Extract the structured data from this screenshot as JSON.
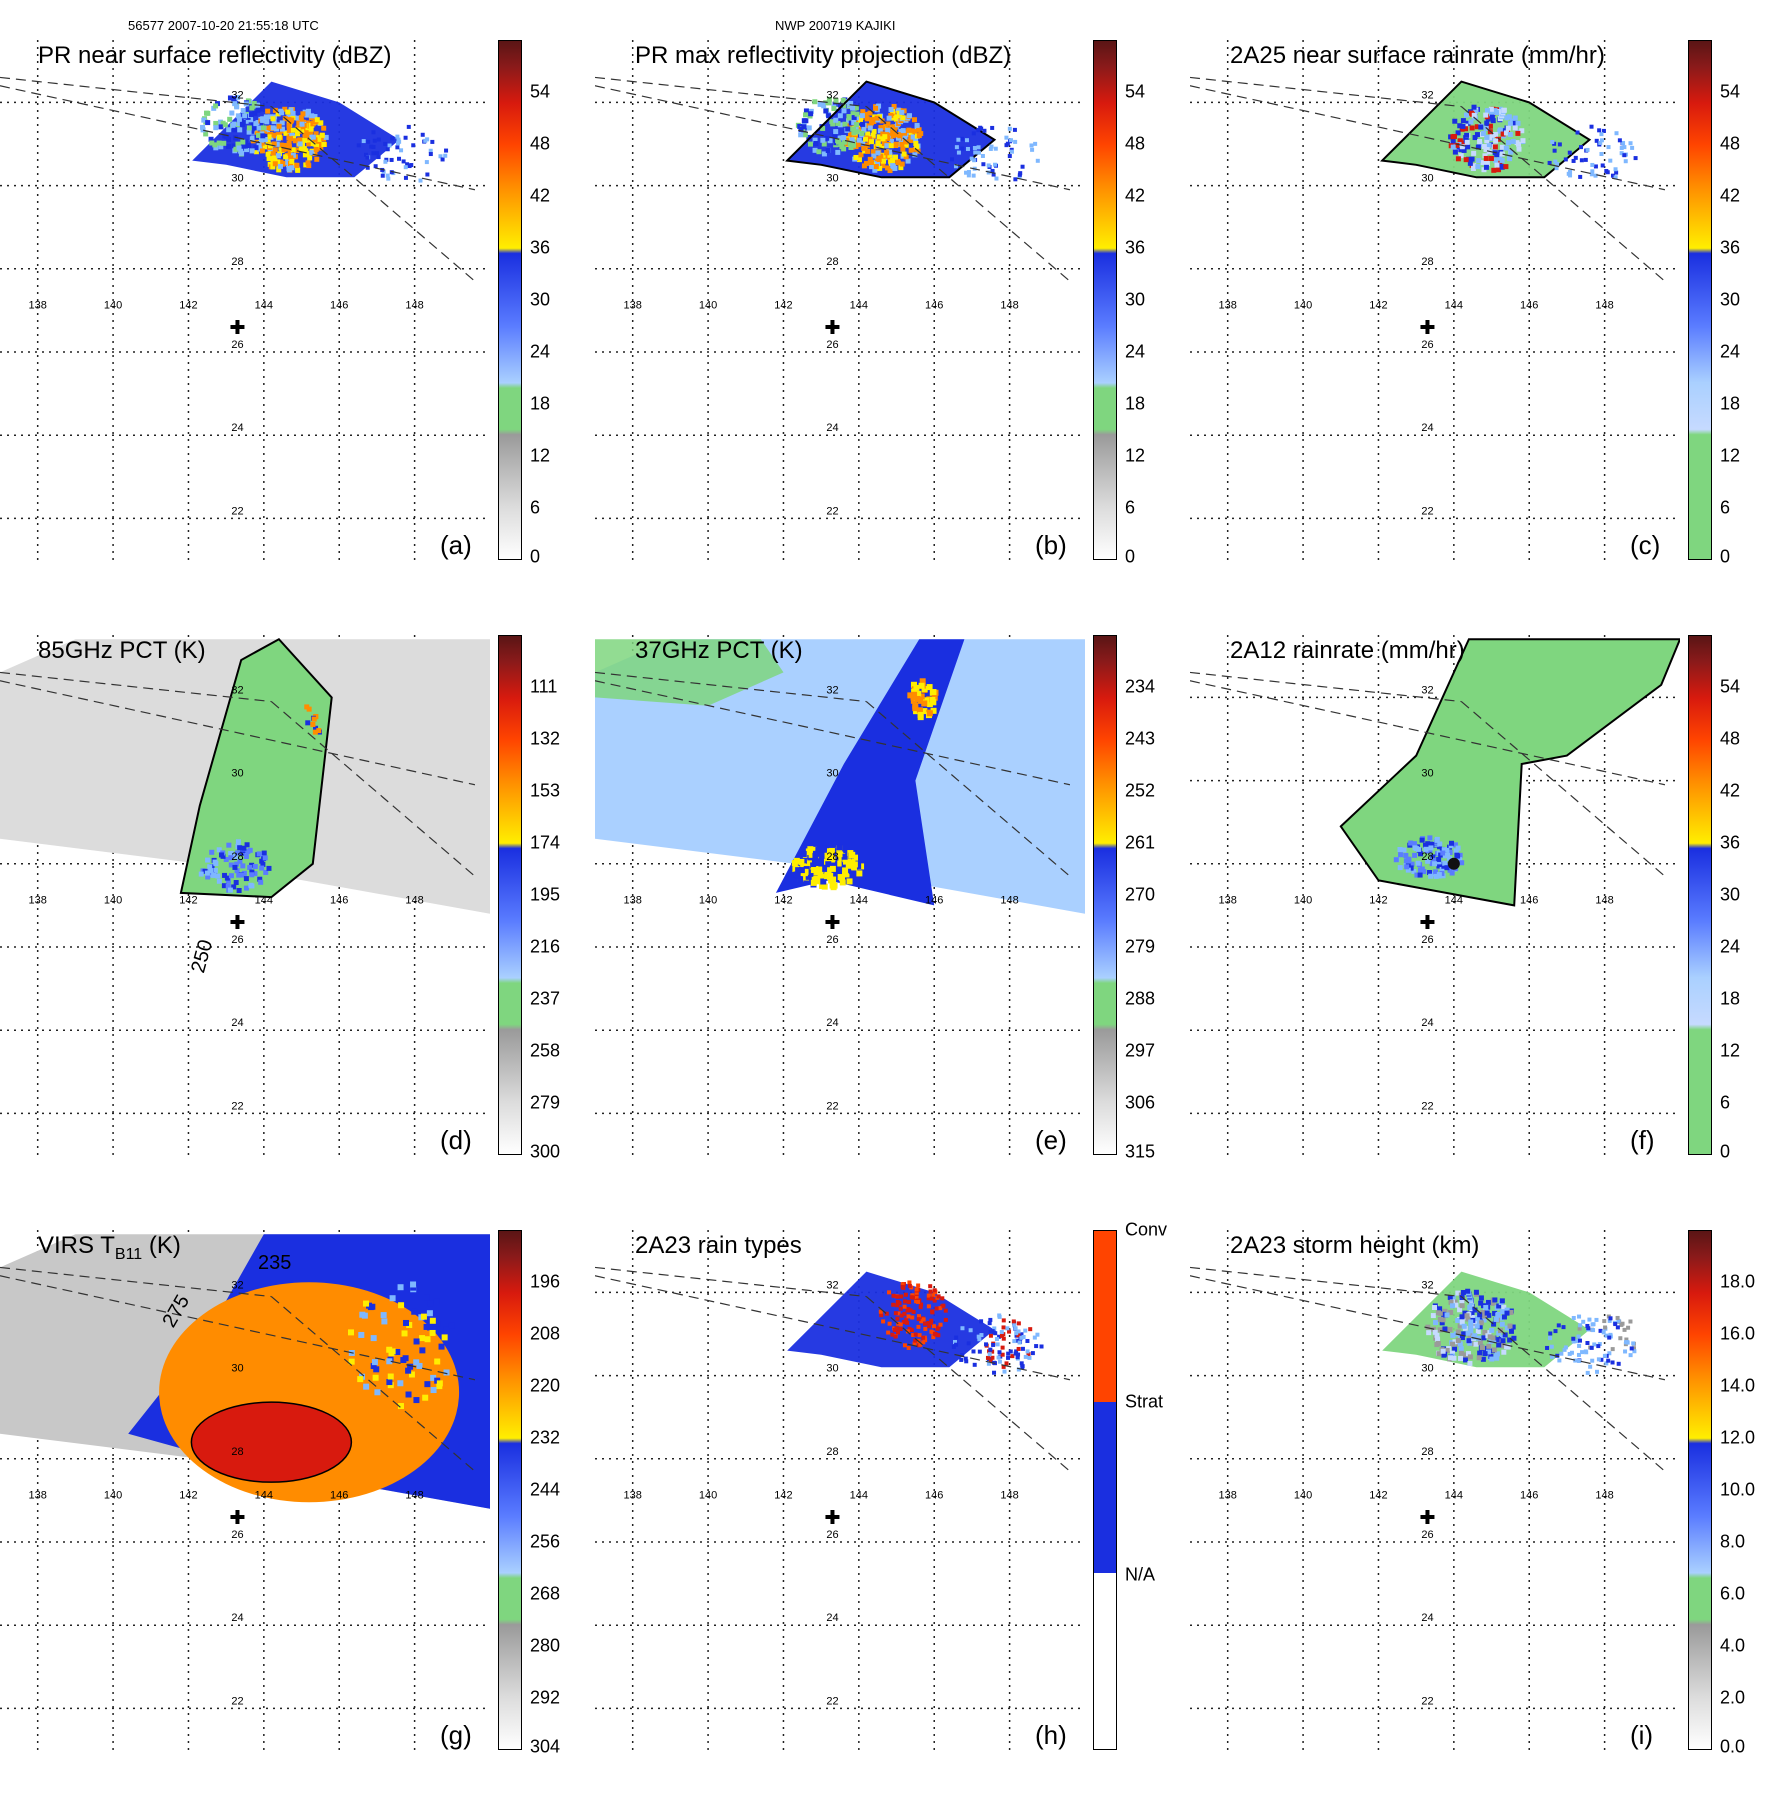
{
  "header": {
    "orbit_time": "56577 2007-10-20 21:55:18 UTC",
    "storm": "NWP 200719 KAJIKI"
  },
  "map": {
    "lon_labels": [
      "138",
      "140",
      "142",
      "144",
      "146",
      "148"
    ],
    "lat_labels": [
      "32",
      "30",
      "28",
      "26",
      "24",
      "22"
    ],
    "lon_range": [
      137,
      150
    ],
    "lat_range": [
      21,
      33.5
    ],
    "storm_center": {
      "lon": 143.3,
      "lat": 26.6
    }
  },
  "panels": [
    {
      "id": "a",
      "title": "PR near surface reflectivity (dBZ)",
      "label": "(a)",
      "colorbar": "dbz",
      "swath": "pr",
      "overlay": "pr_near"
    },
    {
      "id": "b",
      "title": "PR max reflectivity projection (dBZ)",
      "label": "(b)",
      "colorbar": "dbz",
      "swath": "pr",
      "overlay": "pr_max"
    },
    {
      "id": "c",
      "title": "2A25 near surface rainrate (mm/hr)",
      "label": "(c)",
      "colorbar": "rain",
      "swath": "pr",
      "overlay": "pr_rain"
    },
    {
      "id": "d",
      "title": "85GHz PCT (K)",
      "label": "(d)",
      "colorbar": "pct85",
      "swath": "tmi",
      "overlay": "pct85",
      "contour_label": "250"
    },
    {
      "id": "e",
      "title": "37GHz PCT (K)",
      "label": "(e)",
      "colorbar": "pct37",
      "swath": "tmi",
      "overlay": "pct37"
    },
    {
      "id": "f",
      "title": "2A12 rainrate (mm/hr)",
      "label": "(f)",
      "colorbar": "rain",
      "swath": "tmi",
      "overlay": "tmi_rain"
    },
    {
      "id": "g",
      "title": "VIRS T",
      "title_sub": "B11",
      "title_suffix": " (K)",
      "label": "(g)",
      "colorbar": "virs",
      "swath": "tmi",
      "overlay": "virs",
      "contour_labels": [
        "275",
        "235"
      ]
    },
    {
      "id": "h",
      "title": "2A23 rain types",
      "label": "(h)",
      "colorbar": "types",
      "swath": "pr",
      "overlay": "rain_types"
    },
    {
      "id": "i",
      "title": "2A23 storm height (km)",
      "label": "(i)",
      "colorbar": "height",
      "swath": "pr",
      "overlay": "storm_height"
    }
  ],
  "colorbars": {
    "dbz": {
      "ticks": [
        "54",
        "48",
        "42",
        "36",
        "30",
        "24",
        "18",
        "12",
        "6",
        "0"
      ]
    },
    "rain": {
      "ticks": [
        "54",
        "48",
        "42",
        "36",
        "30",
        "24",
        "18",
        "12",
        "6",
        "0"
      ]
    },
    "pct85": {
      "ticks": [
        "111",
        "132",
        "153",
        "174",
        "195",
        "216",
        "237",
        "258",
        "279",
        "300"
      ]
    },
    "pct37": {
      "ticks": [
        "234",
        "243",
        "252",
        "261",
        "270",
        "279",
        "288",
        "297",
        "306",
        "315"
      ]
    },
    "virs": {
      "ticks": [
        "196",
        "208",
        "220",
        "232",
        "244",
        "256",
        "268",
        "280",
        "292",
        "304"
      ]
    },
    "height": {
      "ticks": [
        "18.0",
        "16.0",
        "14.0",
        "12.0",
        "10.0",
        "8.0",
        "6.0",
        "4.0",
        "2.0",
        "0.0"
      ]
    },
    "types": {
      "ticks": [
        "Conv",
        "Strat",
        "N/A"
      ]
    }
  },
  "colors": {
    "dark_red": "#5a1515",
    "red": "#d81a0e",
    "orange": "#ff8c00",
    "yellow": "#ffee00",
    "blue": "#1a2fe0",
    "light_blue": "#7fb8ff",
    "green": "#7fd67f",
    "gray": "#9a9a9a",
    "white": "#ffffff"
  }
}
